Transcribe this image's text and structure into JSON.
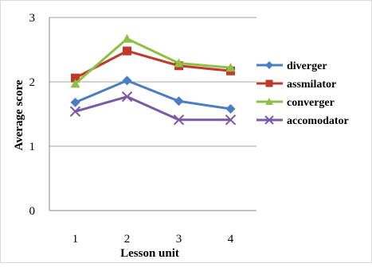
{
  "chart_data": {
    "type": "line",
    "title": "",
    "xlabel": "Lesson unit",
    "ylabel": "Average score",
    "categories": [
      "1",
      "2",
      "3",
      "4"
    ],
    "ylim": [
      0,
      3
    ],
    "yticks": [
      "0",
      "1",
      "2",
      "3"
    ],
    "grid": true,
    "legend_position": "right",
    "series": [
      {
        "name": "diverger",
        "color": "#4a7ec0",
        "marker": "diamond",
        "values": [
          1.68,
          2.02,
          1.7,
          1.58
        ]
      },
      {
        "name": "assmilator",
        "color": "#c0392b",
        "marker": "square",
        "values": [
          2.06,
          2.48,
          2.25,
          2.17
        ]
      },
      {
        "name": "converger",
        "color": "#8fbf45",
        "marker": "triangle",
        "values": [
          1.97,
          2.67,
          2.29,
          2.22
        ]
      },
      {
        "name": "accomodator",
        "color": "#7a5aa6",
        "marker": "x",
        "values": [
          1.54,
          1.77,
          1.41,
          1.41
        ]
      }
    ]
  }
}
